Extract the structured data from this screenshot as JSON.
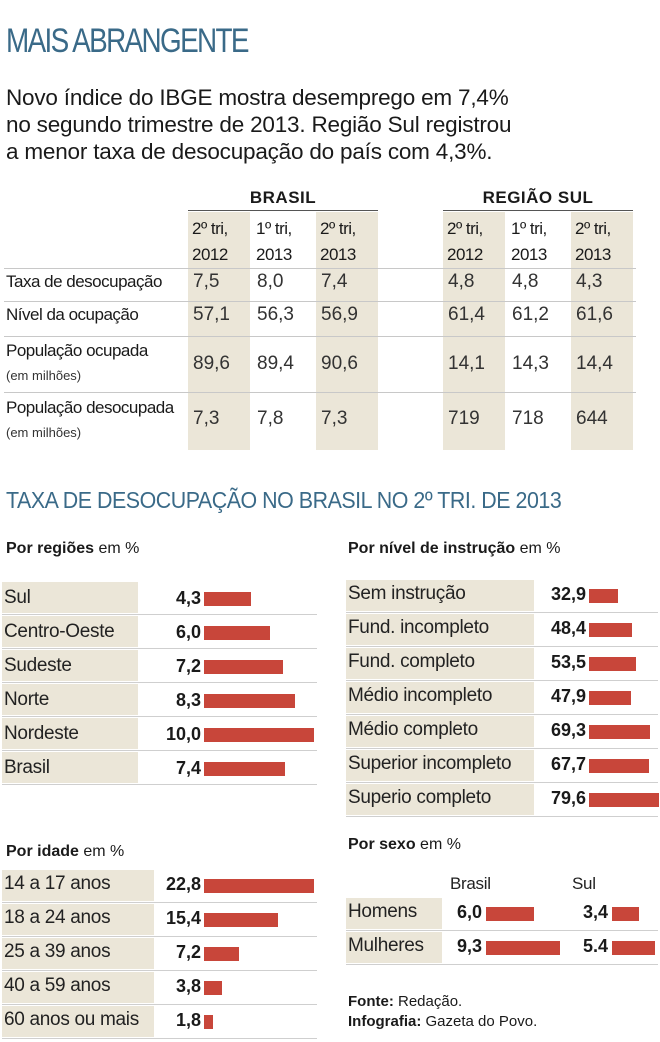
{
  "kicker": "MAIS ABRANGENTE",
  "lede": [
    "Novo índice do IBGE mostra desemprego em 7,4%",
    "no segundo trimestre de 2013. Região Sul registrou",
    "a menor taxa de desocupação do país com 4,3%."
  ],
  "table": {
    "groups": [
      "BRASIL",
      "REGIÃO SUL"
    ],
    "columns": [
      [
        "2º tri,",
        "2012"
      ],
      [
        "1º tri,",
        "2013"
      ],
      [
        "2º tri,",
        "2013"
      ]
    ],
    "rows": [
      {
        "label": "Taxa de desocupação",
        "sub": "",
        "brasil": [
          "7,5",
          "8,0",
          "7,4"
        ],
        "sul": [
          "4,8",
          "4,8",
          "4,3"
        ]
      },
      {
        "label": "Nível da ocupação",
        "sub": "",
        "brasil": [
          "57,1",
          "56,3",
          "56,9"
        ],
        "sul": [
          "61,4",
          "61,2",
          "61,6"
        ]
      },
      {
        "label": "População ocupada",
        "sub": "(em milhões)",
        "brasil": [
          "89,6",
          "89,4",
          "90,6"
        ],
        "sul": [
          "14,1",
          "14,3",
          "14,4"
        ]
      },
      {
        "label": "População desocupada",
        "sub": "(em milhões)",
        "brasil": [
          "7,3",
          "7,8",
          "7,3"
        ],
        "sul": [
          "719",
          "718",
          "644"
        ]
      }
    ]
  },
  "section_title": "TAXA DE DESOCUPAÇÃO NO BRASIL NO 2º TRI. DE 2013",
  "unit": "em %",
  "chart_data": [
    {
      "type": "bar",
      "title": "Por regiões",
      "unit": "em %",
      "categories": [
        "Sul",
        "Centro-Oeste",
        "Sudeste",
        "Norte",
        "Nordeste",
        "Brasil"
      ],
      "values": [
        4.3,
        6.0,
        7.2,
        8.3,
        10.0,
        7.4
      ],
      "labels": [
        "4,3",
        "6,0",
        "7,2",
        "8,3",
        "10,0",
        "7,4"
      ],
      "bar_color": "#c8463a"
    },
    {
      "type": "bar",
      "title": "Por nível de instrução",
      "unit": "em %",
      "categories": [
        "Sem instrução",
        "Fund. incompleto",
        "Fund. completo",
        "Médio incompleto",
        "Médio completo",
        "Superior incompleto",
        "Superio completo"
      ],
      "values": [
        32.9,
        48.4,
        53.5,
        47.9,
        69.3,
        67.7,
        79.6
      ],
      "labels": [
        "32,9",
        "48,4",
        "53,5",
        "47,9",
        "69,3",
        "67,7",
        "79,6"
      ],
      "bar_color": "#c8463a"
    },
    {
      "type": "bar",
      "title": "Por idade",
      "unit": "em %",
      "categories": [
        "14 a 17 anos",
        "18 a 24 anos",
        "25 a 39 anos",
        "40 a 59 anos",
        "60 anos ou mais"
      ],
      "values": [
        22.8,
        15.4,
        7.2,
        3.8,
        1.8
      ],
      "labels": [
        "22,8",
        "15,4",
        "7,2",
        "3,8",
        "1,8"
      ],
      "bar_color": "#c8463a"
    },
    {
      "type": "bar",
      "title": "Por sexo",
      "unit": "em %",
      "categories": [
        "Homens",
        "Mulheres"
      ],
      "series": [
        {
          "name": "Brasil",
          "values": [
            6.0,
            9.3
          ],
          "labels": [
            "6,0",
            "9,3"
          ]
        },
        {
          "name": "Sul",
          "values": [
            3.4,
            5.4
          ],
          "labels": [
            "3,4",
            "5.4"
          ]
        }
      ],
      "bar_color": "#c8463a"
    }
  ],
  "footer": {
    "fonte_label": "Fonte:",
    "fonte_value": "Redação.",
    "info_label": "Infografia:",
    "info_value": "Gazeta do Povo."
  }
}
